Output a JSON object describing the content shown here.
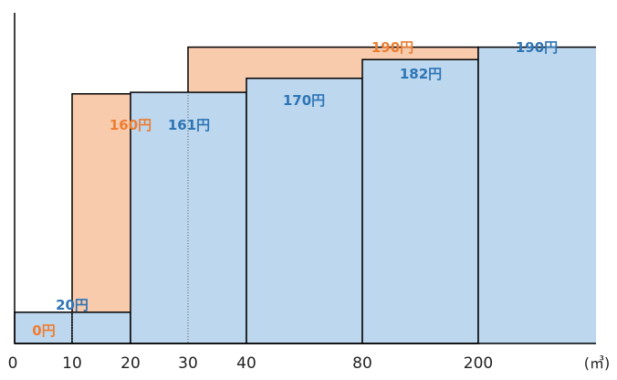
{
  "chart_data": {
    "type": "bar",
    "x_unit": "(㎥)",
    "x_ticks": [
      "0",
      "10",
      "20",
      "30",
      "40",
      "80",
      "200"
    ],
    "grid": false,
    "legend": "none",
    "colors": {
      "orange_fill": "#f8cbad",
      "blue_fill": "#bdd7ee",
      "orange_text": "#ed7d31",
      "blue_text": "#2e75b6",
      "stroke": "#000000"
    },
    "series": [
      {
        "color_key": "orange",
        "segments": [
          {
            "from": 0,
            "to": 10,
            "value": 0,
            "label": "0円"
          },
          {
            "from": 10,
            "to": 20,
            "value": 160,
            "label": "160円"
          },
          {
            "from": 20,
            "to": 30,
            "value": 160,
            "label": ""
          },
          {
            "from": 30,
            "to": 200,
            "value": 190,
            "label": "190円"
          }
        ]
      },
      {
        "color_key": "blue",
        "segments": [
          {
            "from": 0,
            "to": 10,
            "value": 20,
            "label": ""
          },
          {
            "from": 10,
            "to": 20,
            "value": 20,
            "label": "20円"
          },
          {
            "from": 20,
            "to": 40,
            "value": 161,
            "label": "161円"
          },
          {
            "from": 40,
            "to": 80,
            "value": 170,
            "label": "170円"
          },
          {
            "from": 80,
            "to": 200,
            "value": 182,
            "label": "182円"
          },
          {
            "from": 200,
            "to": null,
            "value": 190,
            "label": "190円"
          }
        ]
      }
    ]
  }
}
